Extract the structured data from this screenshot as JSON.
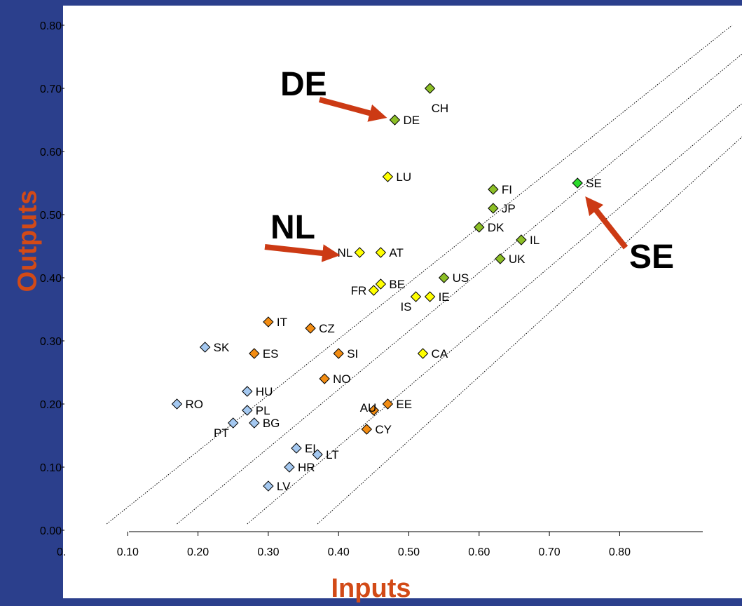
{
  "chart_data": {
    "type": "scatter",
    "xlabel": "Inputs",
    "ylabel": "Outputs",
    "xlim": [
      0.0,
      0.9
    ],
    "ylim": [
      0.0,
      0.8
    ],
    "x_ticks": [
      "0.10",
      "0.20",
      "0.30",
      "0.40",
      "0.50",
      "0.60",
      "0.70",
      "0.80"
    ],
    "x_origin_label": "0.",
    "y_ticks": [
      "0.00",
      "0.10",
      "0.20",
      "0.30",
      "0.40",
      "0.50",
      "0.60",
      "0.70",
      "0.80"
    ],
    "colors": {
      "background": "#2B3F8C",
      "plot": "#FFFFFF",
      "axis_title": "#D24A17",
      "arrow": "#CC3A14",
      "ytick_label": "#000000",
      "light_green": "#8CBF26",
      "bright_green": "#2BDB2B",
      "yellow": "#FFFF00",
      "orange": "#F28C12",
      "light_blue": "#A4C8F0"
    },
    "reference_lines": [
      {
        "x": [
          0.07,
          0.96
        ],
        "y": [
          0.01,
          0.8
        ]
      },
      {
        "x": [
          0.17,
          0.98
        ],
        "y": [
          0.01,
          0.76
        ]
      },
      {
        "x": [
          0.27,
          1.01
        ],
        "y": [
          0.01,
          0.71
        ]
      },
      {
        "x": [
          0.37,
          1.03
        ],
        "y": [
          0.01,
          0.68
        ]
      }
    ],
    "points": [
      {
        "label": "CH",
        "x": 0.53,
        "y": 0.7,
        "color": "light_green",
        "label_pos": "below-right"
      },
      {
        "label": "DE",
        "x": 0.48,
        "y": 0.65,
        "color": "light_green",
        "label_pos": "right"
      },
      {
        "label": "LU",
        "x": 0.47,
        "y": 0.56,
        "color": "yellow",
        "label_pos": "right"
      },
      {
        "label": "FI",
        "x": 0.62,
        "y": 0.54,
        "color": "light_green",
        "label_pos": "right"
      },
      {
        "label": "JP",
        "x": 0.62,
        "y": 0.51,
        "color": "light_green",
        "label_pos": "right"
      },
      {
        "label": "SE",
        "x": 0.74,
        "y": 0.55,
        "color": "bright_green",
        "label_pos": "right"
      },
      {
        "label": "DK",
        "x": 0.6,
        "y": 0.48,
        "color": "light_green",
        "label_pos": "right"
      },
      {
        "label": "IL",
        "x": 0.66,
        "y": 0.46,
        "color": "light_green",
        "label_pos": "right"
      },
      {
        "label": "UK",
        "x": 0.63,
        "y": 0.43,
        "color": "light_green",
        "label_pos": "right"
      },
      {
        "label": "US",
        "x": 0.55,
        "y": 0.4,
        "color": "light_green",
        "label_pos": "right"
      },
      {
        "label": "NL",
        "x": 0.43,
        "y": 0.44,
        "color": "yellow",
        "label_pos": "left"
      },
      {
        "label": "AT",
        "x": 0.46,
        "y": 0.44,
        "color": "yellow",
        "label_pos": "right"
      },
      {
        "label": "BE",
        "x": 0.46,
        "y": 0.39,
        "color": "yellow",
        "label_pos": "right"
      },
      {
        "label": "FR",
        "x": 0.45,
        "y": 0.38,
        "color": "yellow",
        "label_pos": "left"
      },
      {
        "label": "IS",
        "x": 0.51,
        "y": 0.37,
        "color": "yellow",
        "label_pos": "below-left"
      },
      {
        "label": "IE",
        "x": 0.53,
        "y": 0.37,
        "color": "yellow",
        "label_pos": "right"
      },
      {
        "label": "CA",
        "x": 0.52,
        "y": 0.28,
        "color": "yellow",
        "label_pos": "right"
      },
      {
        "label": "IT",
        "x": 0.3,
        "y": 0.33,
        "color": "orange",
        "label_pos": "right"
      },
      {
        "label": "CZ",
        "x": 0.36,
        "y": 0.32,
        "color": "orange",
        "label_pos": "right"
      },
      {
        "label": "ES",
        "x": 0.28,
        "y": 0.28,
        "color": "orange",
        "label_pos": "right"
      },
      {
        "label": "SI",
        "x": 0.4,
        "y": 0.28,
        "color": "orange",
        "label_pos": "right"
      },
      {
        "label": "NO",
        "x": 0.38,
        "y": 0.24,
        "color": "orange",
        "label_pos": "right"
      },
      {
        "label": "AU",
        "x": 0.45,
        "y": 0.19,
        "color": "orange",
        "label_pos": "above-left"
      },
      {
        "label": "EE",
        "x": 0.47,
        "y": 0.2,
        "color": "orange",
        "label_pos": "right"
      },
      {
        "label": "CY",
        "x": 0.44,
        "y": 0.16,
        "color": "orange",
        "label_pos": "right"
      },
      {
        "label": "SK",
        "x": 0.21,
        "y": 0.29,
        "color": "light_blue",
        "label_pos": "right"
      },
      {
        "label": "HU",
        "x": 0.27,
        "y": 0.22,
        "color": "light_blue",
        "label_pos": "right"
      },
      {
        "label": "RO",
        "x": 0.17,
        "y": 0.2,
        "color": "light_blue",
        "label_pos": "right"
      },
      {
        "label": "PL",
        "x": 0.27,
        "y": 0.19,
        "color": "light_blue",
        "label_pos": "right"
      },
      {
        "label": "BG",
        "x": 0.28,
        "y": 0.17,
        "color": "light_blue",
        "label_pos": "right"
      },
      {
        "label": "PT",
        "x": 0.25,
        "y": 0.17,
        "color": "light_blue",
        "label_pos": "below-left"
      },
      {
        "label": "EL",
        "x": 0.34,
        "y": 0.13,
        "color": "light_blue",
        "label_pos": "right"
      },
      {
        "label": "LT",
        "x": 0.37,
        "y": 0.12,
        "color": "light_blue",
        "label_pos": "right"
      },
      {
        "label": "HR",
        "x": 0.33,
        "y": 0.1,
        "color": "light_blue",
        "label_pos": "right"
      },
      {
        "label": "LV",
        "x": 0.3,
        "y": 0.07,
        "color": "light_blue",
        "label_pos": "right"
      }
    ],
    "callouts": [
      {
        "text": "DE",
        "points_to": "DE"
      },
      {
        "text": "NL",
        "points_to": "NL"
      },
      {
        "text": "SE",
        "points_to": "SE"
      }
    ]
  }
}
